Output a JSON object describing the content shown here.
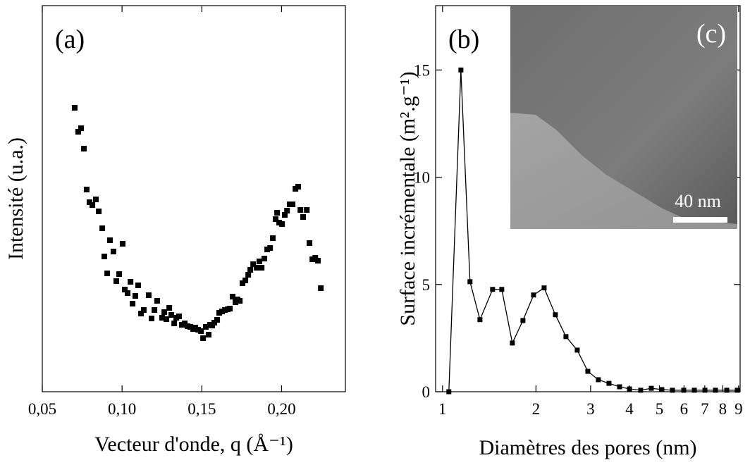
{
  "chart_data": [
    {
      "type": "scatter",
      "annotation": "(a)",
      "x_label": "Vecteur d'onde, q (Å⁻¹)",
      "y_label": "Intensité (u.a.)",
      "color": "#000000",
      "x": [
        0.0703,
        0.0725,
        0.0743,
        0.0761,
        0.0778,
        0.0796,
        0.0814,
        0.0836,
        0.0854,
        0.0876,
        0.0889,
        0.0907,
        0.0924,
        0.0946,
        0.0964,
        0.0982,
        0.1004,
        0.1017,
        0.1035,
        0.1053,
        0.1066,
        0.1083,
        0.1101,
        0.1119,
        0.1136,
        0.1167,
        0.1185,
        0.1203,
        0.122,
        0.1251,
        0.1265,
        0.1278,
        0.1296,
        0.1309,
        0.1327,
        0.134,
        0.1357,
        0.1375,
        0.1393,
        0.1411,
        0.1428,
        0.1446,
        0.1459,
        0.1477,
        0.1495,
        0.1508,
        0.1525,
        0.1543,
        0.1552,
        0.1565,
        0.1578,
        0.1596,
        0.1609,
        0.1627,
        0.1645,
        0.1662,
        0.1676,
        0.1693,
        0.1711,
        0.1724,
        0.1738,
        0.1755,
        0.1773,
        0.1791,
        0.1804,
        0.1822,
        0.1844,
        0.1861,
        0.1875,
        0.1892,
        0.191,
        0.1928,
        0.1945,
        0.1963,
        0.1972,
        0.1985,
        0.2003,
        0.202,
        0.2034,
        0.2051,
        0.2069,
        0.2087,
        0.2104,
        0.2118,
        0.2135,
        0.2158,
        0.2175,
        0.2193,
        0.2211,
        0.2228,
        0.2246
      ],
      "values": [
        4.03,
        3.69,
        3.74,
        3.45,
        2.87,
        2.69,
        2.65,
        2.73,
        2.56,
        2.32,
        1.92,
        1.68,
        2.15,
        1.99,
        1.57,
        1.67,
        2.1,
        1.45,
        1.4,
        1.56,
        1.25,
        1.36,
        1.51,
        1.11,
        1.16,
        1.37,
        1.04,
        1.16,
        1.29,
        1.05,
        1.13,
        1.03,
        1.19,
        1.09,
        0.97,
        1.05,
        1.07,
        0.95,
        0.97,
        0.93,
        0.92,
        0.89,
        0.91,
        0.88,
        0.86,
        0.76,
        0.92,
        0.81,
        0.95,
        0.94,
        0.98,
        1.02,
        1.12,
        1.14,
        1.16,
        1.17,
        1.18,
        1.35,
        1.27,
        1.31,
        1.29,
        1.54,
        1.58,
        1.66,
        1.73,
        1.81,
        1.76,
        1.85,
        1.76,
        1.89,
        2.02,
        2.04,
        2.18,
        2.45,
        2.54,
        2.4,
        2.38,
        2.51,
        2.57,
        2.66,
        2.66,
        2.88,
        2.91,
        2.58,
        2.48,
        2.58,
        2.11,
        1.88,
        1.9,
        1.86,
        1.47
      ],
      "xlim": [
        0.05,
        0.24
      ],
      "xticks": [
        {
          "value": 0.05,
          "label": "0,05"
        },
        {
          "value": 0.1,
          "label": "0,10"
        },
        {
          "value": 0.15,
          "label": "0,15"
        },
        {
          "value": 0.2,
          "label": "0,20"
        }
      ],
      "ylim": [
        0,
        5.48
      ]
    },
    {
      "type": "line",
      "annotation": "(b)",
      "x_label": "Diamètres des pores (nm)",
      "y_label": "Surface incrémentale (m².g⁻¹)",
      "color": "#000000",
      "log_x": true,
      "x": [
        1.048,
        1.146,
        1.226,
        1.32,
        1.45,
        1.552,
        1.679,
        1.816,
        1.965,
        2.125,
        2.31,
        2.499,
        2.717,
        2.939,
        3.178,
        3.438,
        3.72,
        4.004,
        4.351,
        4.707,
        5.09,
        5.508,
        5.989,
        6.478,
        7.008,
        7.577,
        8.241,
        8.913
      ],
      "values": [
        0,
        15.0,
        5.13,
        3.36,
        4.77,
        4.77,
        2.27,
        3.32,
        4.51,
        4.84,
        3.59,
        2.57,
        1.94,
        0.95,
        0.56,
        0.39,
        0.23,
        0.13,
        0.07,
        0.16,
        0.1,
        0.07,
        0.07,
        0.07,
        0.07,
        0.07,
        0.07,
        0.07
      ],
      "xlim": [
        0.95,
        9.1
      ],
      "xticks": [
        1,
        2,
        3,
        4,
        5,
        6,
        7,
        8,
        9
      ],
      "ylim": [
        0,
        18
      ],
      "yticks": [
        0,
        5,
        10,
        15
      ]
    }
  ],
  "inset": {
    "label": "(c)",
    "scale_bar": "40 nm"
  }
}
